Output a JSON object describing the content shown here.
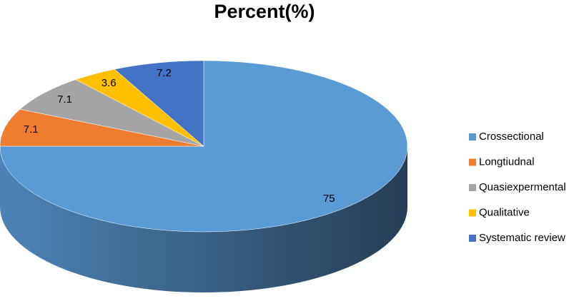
{
  "chart_data": {
    "type": "pie3d",
    "title": "Percent(%)",
    "categories": [
      "Crossectional",
      "Longtiudnal",
      "Quasiexpermental",
      "Qualitative",
      "Systematic review"
    ],
    "values": [
      75,
      7.1,
      7.1,
      3.6,
      7.2
    ],
    "colors": [
      "#5b9bd5",
      "#ed7d31",
      "#a5a5a5",
      "#ffc000",
      "#4472c4"
    ],
    "legend": "right"
  }
}
